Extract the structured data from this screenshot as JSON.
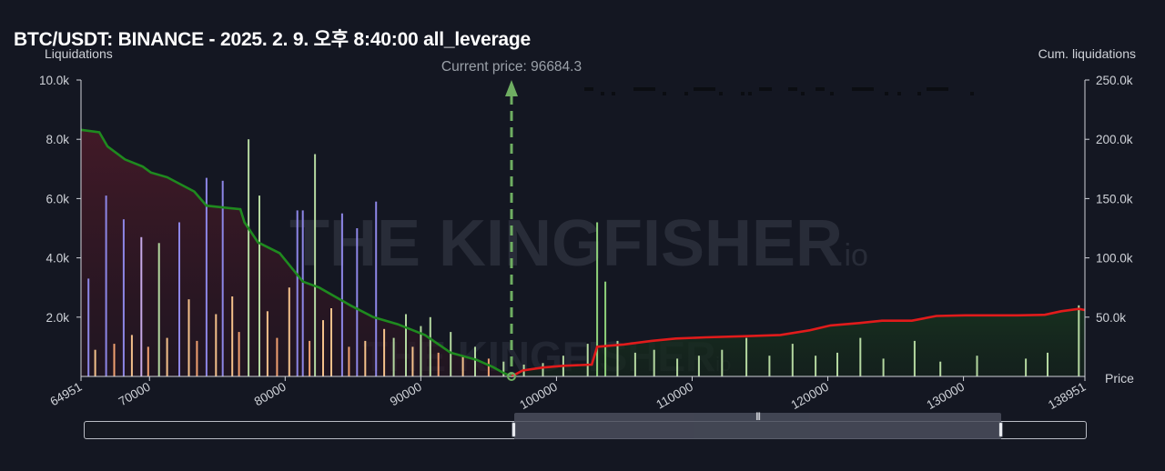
{
  "title": "BTC/USDT: BINANCE - 2025. 2. 9. 오후 8:40:00 all_leverage",
  "watermark": {
    "brand": "THE KINGFISHER",
    "suffix": ".io"
  },
  "chart_data": {
    "type": "bar",
    "y_left_label": "Liquidations",
    "y_right_label": "Cum. liquidations",
    "x_label": "Price",
    "current_price_label": "Current price: 96684.3",
    "current_price": 96684.3,
    "x_range": [
      64951,
      138951
    ],
    "y_left_range": [
      0,
      10000
    ],
    "y_right_range": [
      0,
      250000
    ],
    "x_ticks": [
      "64951",
      "70000",
      "80000",
      "90000",
      "100000",
      "110000",
      "120000",
      "130000",
      "138951"
    ],
    "x_tick_values": [
      64951,
      70000,
      80000,
      90000,
      100000,
      110000,
      120000,
      130000,
      138951
    ],
    "y_left_ticks": [
      "10.0k",
      "8.0k",
      "6.0k",
      "4.0k",
      "2.0k"
    ],
    "y_left_tick_values": [
      10000,
      8000,
      6000,
      4000,
      2000
    ],
    "y_right_ticks": [
      "250.0k",
      "200.0k",
      "150.0k",
      "100.0k",
      "50.0k"
    ],
    "y_right_tick_values": [
      250000,
      200000,
      150000,
      100000,
      50000
    ],
    "bars_tall": [
      {
        "x": 65500,
        "y": 3300,
        "c": "#8d86e6"
      },
      {
        "x": 66000,
        "y": 900,
        "c": "#f4c08a"
      },
      {
        "x": 66800,
        "y": 6100,
        "c": "#8d86e6"
      },
      {
        "x": 67400,
        "y": 1100,
        "c": "#f0a070"
      },
      {
        "x": 68100,
        "y": 5300,
        "c": "#8d86e6"
      },
      {
        "x": 68700,
        "y": 1400,
        "c": "#f4c08a"
      },
      {
        "x": 69400,
        "y": 4700,
        "c": "#c6a8e6"
      },
      {
        "x": 69900,
        "y": 1000,
        "c": "#f0a070"
      },
      {
        "x": 70700,
        "y": 4500,
        "c": "#b4d8a0"
      },
      {
        "x": 71300,
        "y": 1300,
        "c": "#f4c08a"
      },
      {
        "x": 72200,
        "y": 5200,
        "c": "#8d86e6"
      },
      {
        "x": 72900,
        "y": 2600,
        "c": "#f4c08a"
      },
      {
        "x": 73500,
        "y": 1200,
        "c": "#f0a070"
      },
      {
        "x": 74200,
        "y": 6700,
        "c": "#8d86e6"
      },
      {
        "x": 74900,
        "y": 2100,
        "c": "#f4c08a"
      },
      {
        "x": 75400,
        "y": 6600,
        "c": "#8d86e6"
      },
      {
        "x": 76100,
        "y": 2700,
        "c": "#f4c08a"
      },
      {
        "x": 76600,
        "y": 1500,
        "c": "#f0a070"
      },
      {
        "x": 77300,
        "y": 8000,
        "c": "#b4d8a0"
      },
      {
        "x": 78100,
        "y": 6100,
        "c": "#b4d8a0"
      },
      {
        "x": 78700,
        "y": 2200,
        "c": "#f4c08a"
      },
      {
        "x": 79400,
        "y": 1300,
        "c": "#f0a070"
      },
      {
        "x": 80300,
        "y": 3000,
        "c": "#f4c08a"
      },
      {
        "x": 80900,
        "y": 5600,
        "c": "#8d86e6"
      },
      {
        "x": 81300,
        "y": 5600,
        "c": "#8d86e6"
      },
      {
        "x": 81800,
        "y": 1200,
        "c": "#f0a070"
      },
      {
        "x": 82200,
        "y": 7500,
        "c": "#b4d8a0"
      },
      {
        "x": 82800,
        "y": 1900,
        "c": "#f4c08a"
      },
      {
        "x": 83400,
        "y": 2300,
        "c": "#f4c08a"
      },
      {
        "x": 84200,
        "y": 5500,
        "c": "#8d86e6"
      },
      {
        "x": 84700,
        "y": 1000,
        "c": "#f0a070"
      },
      {
        "x": 85300,
        "y": 5000,
        "c": "#8d86e6"
      },
      {
        "x": 85900,
        "y": 1200,
        "c": "#f4c08a"
      },
      {
        "x": 86700,
        "y": 5900,
        "c": "#8d86e6"
      },
      {
        "x": 87300,
        "y": 1600,
        "c": "#f4c08a"
      },
      {
        "x": 88000,
        "y": 1300,
        "c": "#b4d8a0"
      },
      {
        "x": 88900,
        "y": 2100,
        "c": "#b4d8a0"
      },
      {
        "x": 89400,
        "y": 1000,
        "c": "#f4c08a"
      },
      {
        "x": 90000,
        "y": 1700,
        "c": "#b4d8a0"
      },
      {
        "x": 90700,
        "y": 2000,
        "c": "#b4d8a0"
      },
      {
        "x": 91300,
        "y": 800,
        "c": "#f0a070"
      },
      {
        "x": 92200,
        "y": 1500,
        "c": "#b4d8a0"
      },
      {
        "x": 93100,
        "y": 700,
        "c": "#f4c08a"
      },
      {
        "x": 94000,
        "y": 1000,
        "c": "#b4d8a0"
      },
      {
        "x": 95000,
        "y": 600,
        "c": "#f0a070"
      },
      {
        "x": 96100,
        "y": 500,
        "c": "#b4d8a0"
      },
      {
        "x": 97600,
        "y": 400,
        "c": "#b4d8a0"
      },
      {
        "x": 99000,
        "y": 450,
        "c": "#b4d8a0"
      },
      {
        "x": 100500,
        "y": 700,
        "c": "#b4d8a0"
      },
      {
        "x": 102300,
        "y": 1100,
        "c": "#b4d8a0"
      },
      {
        "x": 103000,
        "y": 5200,
        "c": "#8fd27a"
      },
      {
        "x": 103600,
        "y": 3200,
        "c": "#8fd27a"
      },
      {
        "x": 104500,
        "y": 1200,
        "c": "#b4d8a0"
      },
      {
        "x": 105800,
        "y": 800,
        "c": "#b4d8a0"
      },
      {
        "x": 107200,
        "y": 900,
        "c": "#b4d8a0"
      },
      {
        "x": 108900,
        "y": 600,
        "c": "#b4d8a0"
      },
      {
        "x": 110500,
        "y": 700,
        "c": "#b4d8a0"
      },
      {
        "x": 112200,
        "y": 900,
        "c": "#b4d8a0"
      },
      {
        "x": 114000,
        "y": 1300,
        "c": "#b4d8a0"
      },
      {
        "x": 115700,
        "y": 700,
        "c": "#b4d8a0"
      },
      {
        "x": 117400,
        "y": 1100,
        "c": "#b4d8a0"
      },
      {
        "x": 119100,
        "y": 700,
        "c": "#b4d8a0"
      },
      {
        "x": 120700,
        "y": 800,
        "c": "#b4d8a0"
      },
      {
        "x": 122400,
        "y": 1300,
        "c": "#b4d8a0"
      },
      {
        "x": 124100,
        "y": 600,
        "c": "#b4d8a0"
      },
      {
        "x": 126400,
        "y": 1200,
        "c": "#b4d8a0"
      },
      {
        "x": 128300,
        "y": 500,
        "c": "#b4d8a0"
      },
      {
        "x": 131000,
        "y": 700,
        "c": "#b4d8a0"
      },
      {
        "x": 134600,
        "y": 600,
        "c": "#b4d8a0"
      },
      {
        "x": 136200,
        "y": 800,
        "c": "#b4d8a0"
      },
      {
        "x": 138500,
        "y": 2400,
        "c": "#b4d8a0"
      }
    ],
    "series": [
      {
        "name": "",
        "color": "#1f8a1f",
        "x": [
          64951,
          66300,
          66900,
          68200,
          69500,
          70100,
          71300,
          73300,
          74200,
          76700,
          77000,
          78000,
          79600,
          81300,
          82500,
          84800,
          86500,
          88300,
          90300,
          92200,
          94100,
          95300,
          96100,
          96684
        ],
        "y": [
          208000,
          206000,
          194000,
          183000,
          177000,
          172000,
          168000,
          156000,
          144000,
          141000,
          130000,
          113000,
          104000,
          80000,
          75000,
          60000,
          50000,
          44000,
          35000,
          20000,
          14000,
          8000,
          3000,
          0
        ]
      },
      {
        "name": "",
        "color": "#e11b1b",
        "x": [
          96684,
          97500,
          99000,
          100500,
          102600,
          103000,
          105000,
          107000,
          108800,
          111000,
          114000,
          116500,
          118700,
          120200,
          122300,
          124000,
          126200,
          128000,
          130100,
          132000,
          134000,
          136000,
          137200,
          138500,
          138951
        ],
        "y": [
          0,
          5000,
          7500,
          9000,
          10000,
          25000,
          27000,
          30000,
          32000,
          33000,
          34000,
          35000,
          39000,
          43000,
          45000,
          47000,
          47000,
          51000,
          51500,
          51500,
          51500,
          52000,
          55000,
          57000,
          56000
        ]
      }
    ],
    "grid": false,
    "legend": "none"
  },
  "slider": {
    "handle_glyph": "|||"
  }
}
